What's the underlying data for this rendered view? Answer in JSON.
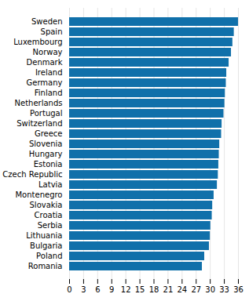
{
  "chart_data": {
    "type": "bar",
    "orientation": "horizontal",
    "categories": [
      "Sweden",
      "Spain",
      "Luxembourg",
      "Norway",
      "Denmark",
      "Ireland",
      "Germany",
      "Finland",
      "Netherlands",
      "Portugal",
      "Switzerland",
      "Greece",
      "Slovenia",
      "Hungary",
      "Estonia",
      "Czech Republic",
      "Latvia",
      "Montenegro",
      "Slovakia",
      "Croatia",
      "Serbia",
      "Lithuania",
      "Bulgaria",
      "Poland",
      "Romania"
    ],
    "values": [
      36.0,
      35.1,
      34.8,
      34.5,
      34.0,
      33.5,
      33.4,
      33.2,
      33.1,
      32.9,
      32.5,
      32.4,
      32.0,
      31.9,
      31.8,
      31.7,
      31.5,
      30.8,
      30.5,
      30.4,
      30.1,
      30.0,
      29.8,
      28.8,
      28.3
    ],
    "color": "#1070aa",
    "xlim": [
      0,
      36
    ],
    "xticks": [
      0,
      3,
      6,
      9,
      12,
      15,
      18,
      21,
      24,
      27,
      30,
      33,
      36
    ],
    "grid": true
  }
}
